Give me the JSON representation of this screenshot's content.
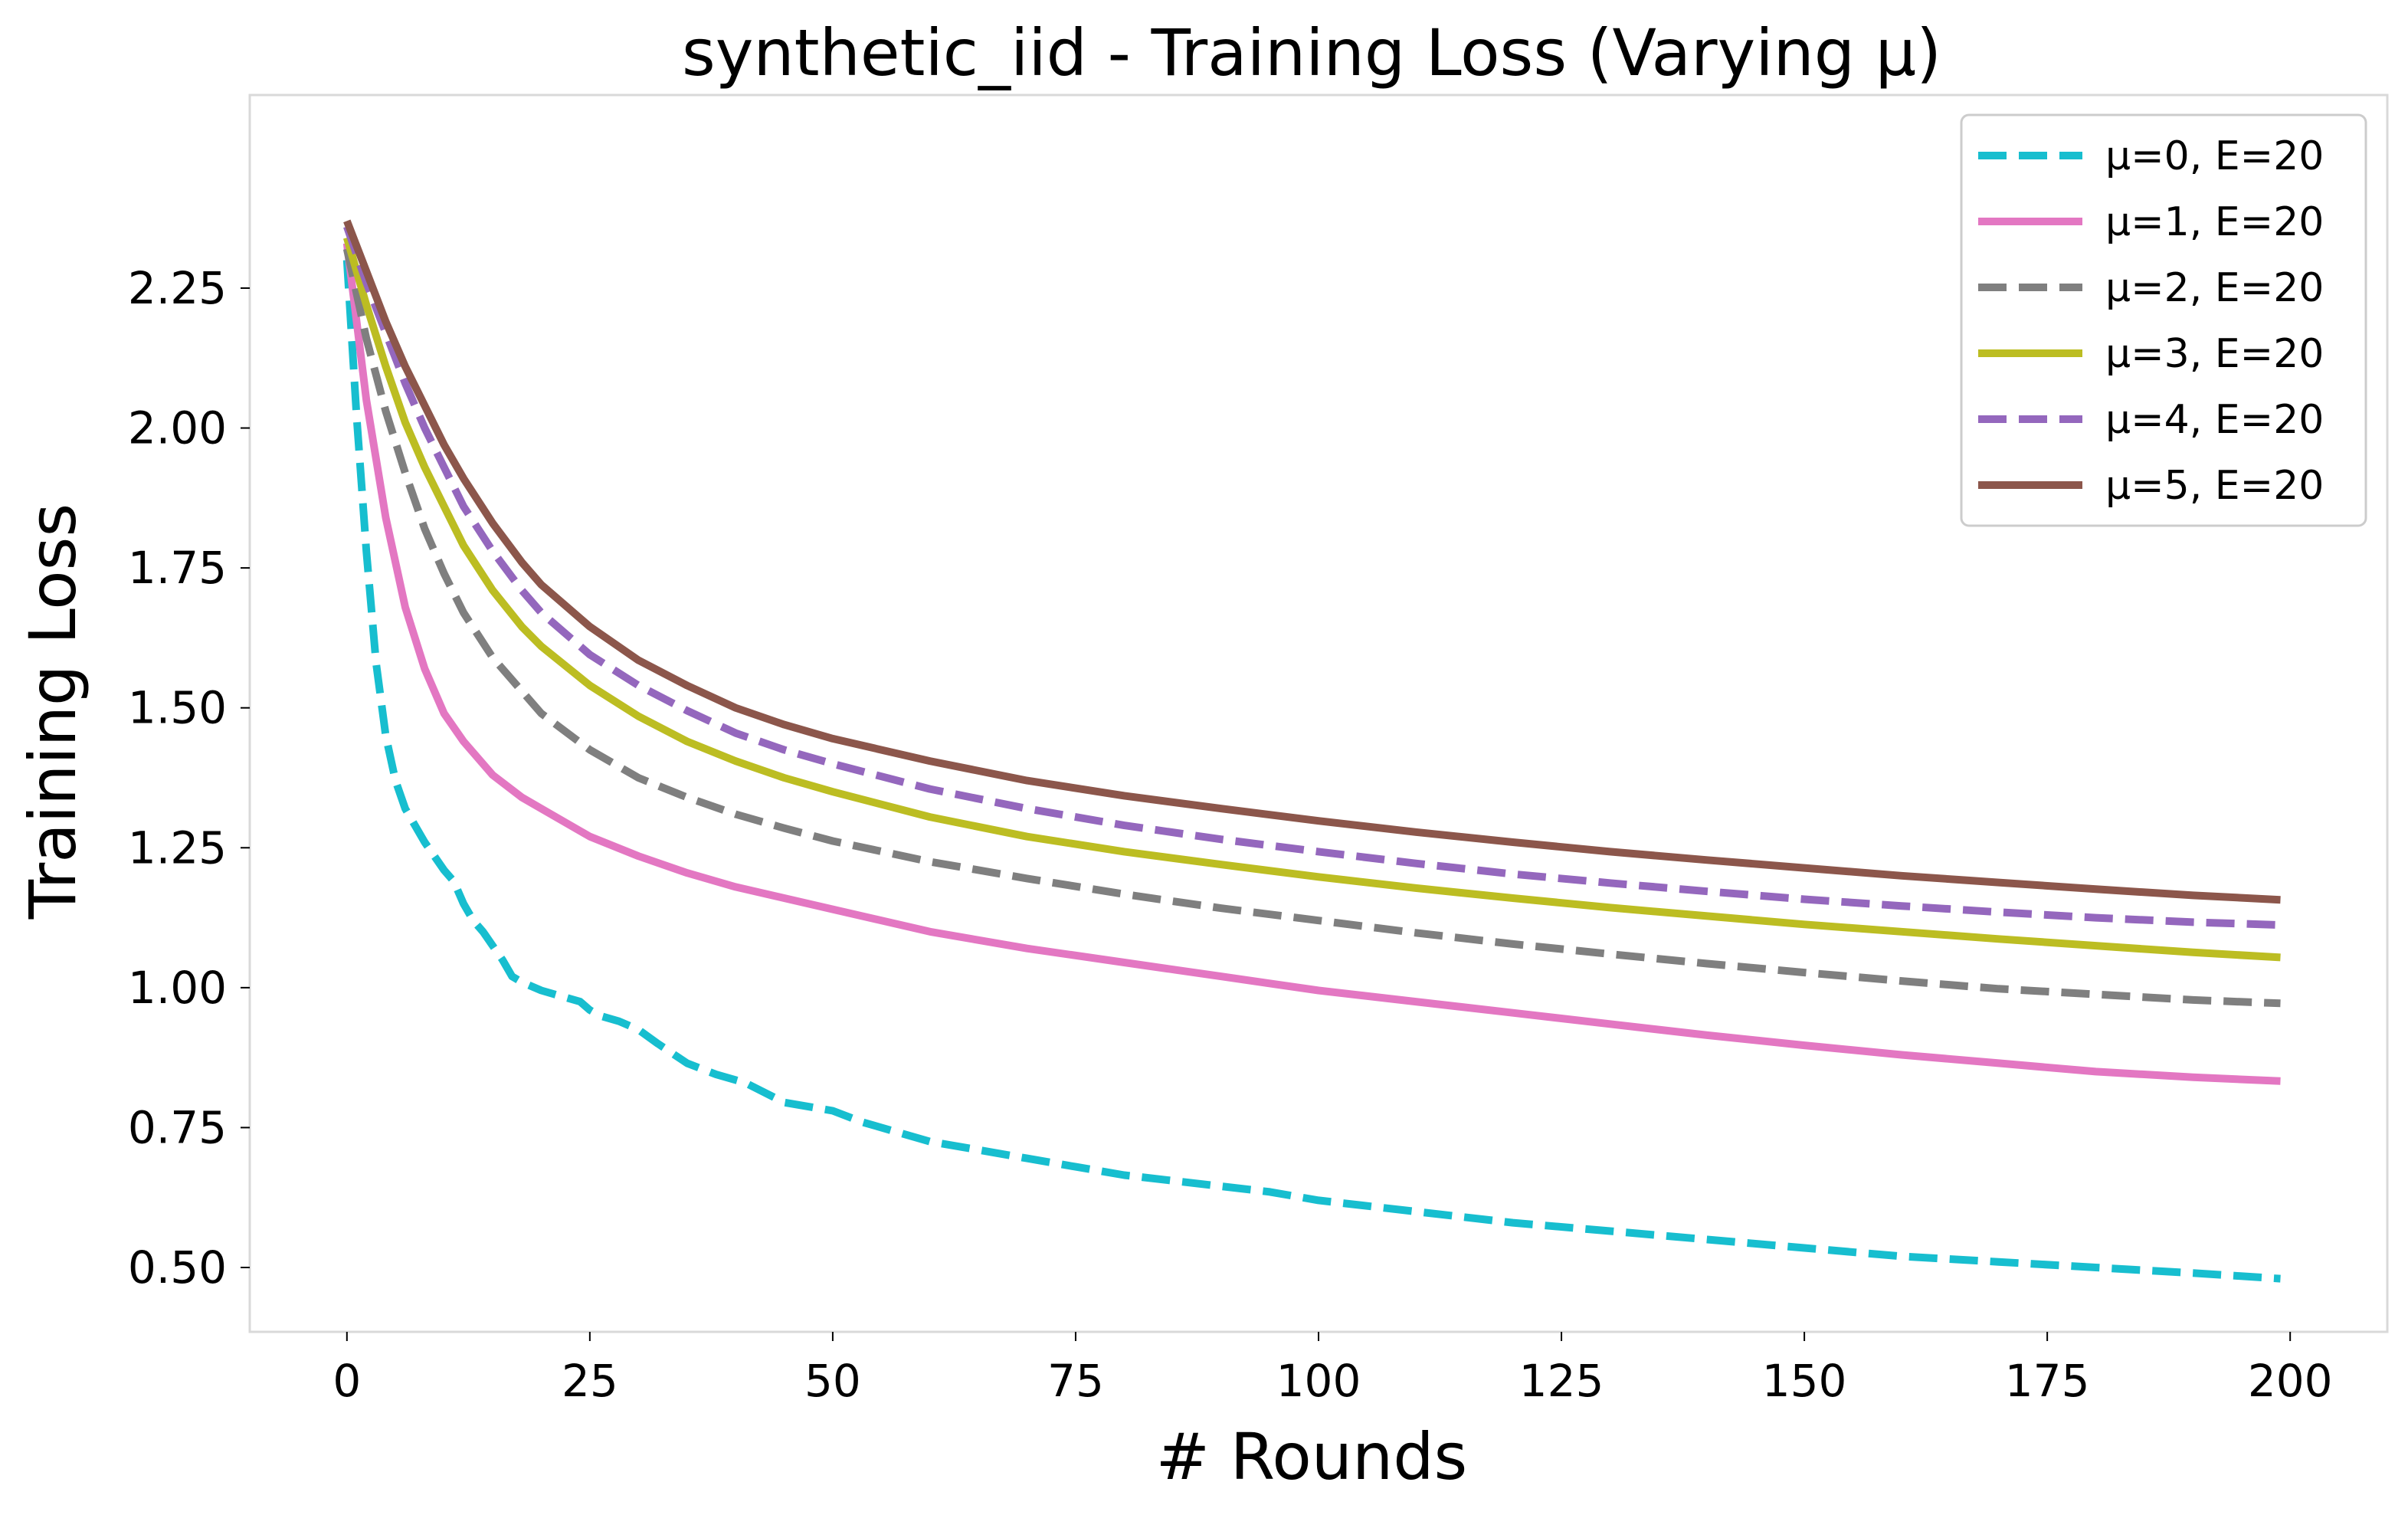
{
  "chart_data": {
    "type": "line",
    "title": "synthetic_iid - Training Loss (Varying μ)",
    "xlabel": "# Rounds",
    "ylabel": "Training Loss",
    "xlim": [
      -10,
      210
    ],
    "ylim": [
      0.385,
      2.595
    ],
    "x_ticks": [
      0,
      25,
      50,
      75,
      100,
      125,
      150,
      175,
      200
    ],
    "y_ticks": [
      0.5,
      0.75,
      1.0,
      1.25,
      1.5,
      1.75,
      2.0,
      2.25
    ],
    "x_tick_labels": [
      "0",
      "25",
      "50",
      "75",
      "100",
      "125",
      "150",
      "175",
      "200"
    ],
    "y_tick_labels": [
      "0.50",
      "0.75",
      "1.00",
      "1.25",
      "1.50",
      "1.75",
      "2.00",
      "2.25"
    ],
    "grid": false,
    "legend_position": "top-right",
    "series": [
      {
        "name": "μ=0, E=20",
        "color": "#17becf",
        "dashed": true,
        "x": [
          0,
          1,
          2,
          3,
          4,
          5,
          6,
          8,
          10,
          11,
          12,
          13,
          14,
          16,
          17,
          18,
          20,
          22,
          24,
          25,
          26,
          28,
          30,
          32,
          35,
          38,
          41,
          45,
          50,
          53,
          56,
          60,
          65,
          70,
          75,
          80,
          85,
          90,
          95,
          100,
          110,
          120,
          130,
          140,
          150,
          160,
          170,
          180,
          190,
          199
        ],
        "y": [
          2.3,
          2.02,
          1.78,
          1.58,
          1.45,
          1.37,
          1.32,
          1.26,
          1.21,
          1.19,
          1.15,
          1.12,
          1.1,
          1.05,
          1.02,
          1.01,
          0.995,
          0.985,
          0.975,
          0.96,
          0.95,
          0.94,
          0.925,
          0.9,
          0.865,
          0.845,
          0.83,
          0.795,
          0.78,
          0.76,
          0.745,
          0.725,
          0.71,
          0.695,
          0.68,
          0.665,
          0.655,
          0.645,
          0.635,
          0.62,
          0.6,
          0.58,
          0.565,
          0.55,
          0.535,
          0.52,
          0.51,
          0.5,
          0.49,
          0.48
        ]
      },
      {
        "name": "μ=1, E=20",
        "color": "#e377c2",
        "dashed": false,
        "x": [
          0,
          2,
          4,
          6,
          8,
          10,
          12,
          15,
          18,
          20,
          25,
          30,
          35,
          40,
          45,
          50,
          60,
          70,
          80,
          90,
          100,
          110,
          120,
          130,
          140,
          150,
          160,
          170,
          180,
          190,
          199
        ],
        "y": [
          2.33,
          2.05,
          1.84,
          1.68,
          1.57,
          1.49,
          1.44,
          1.38,
          1.34,
          1.32,
          1.27,
          1.235,
          1.205,
          1.18,
          1.16,
          1.14,
          1.1,
          1.07,
          1.045,
          1.02,
          0.995,
          0.975,
          0.955,
          0.935,
          0.915,
          0.897,
          0.88,
          0.865,
          0.85,
          0.84,
          0.833
        ]
      },
      {
        "name": "μ=2, E=20",
        "color": "#7f7f7f",
        "dashed": true,
        "x": [
          0,
          2,
          4,
          6,
          8,
          10,
          12,
          15,
          18,
          20,
          25,
          30,
          35,
          40,
          45,
          50,
          60,
          70,
          80,
          90,
          100,
          110,
          120,
          130,
          140,
          150,
          160,
          170,
          180,
          190,
          199
        ],
        "y": [
          2.32,
          2.16,
          2.03,
          1.92,
          1.82,
          1.74,
          1.67,
          1.59,
          1.53,
          1.49,
          1.425,
          1.375,
          1.34,
          1.31,
          1.285,
          1.262,
          1.225,
          1.195,
          1.167,
          1.142,
          1.12,
          1.098,
          1.078,
          1.06,
          1.043,
          1.027,
          1.012,
          0.998,
          0.988,
          0.978,
          0.972
        ]
      },
      {
        "name": "μ=3, E=20",
        "color": "#bcbd22",
        "dashed": false,
        "x": [
          0,
          2,
          4,
          6,
          8,
          10,
          12,
          15,
          18,
          20,
          25,
          30,
          35,
          40,
          45,
          50,
          60,
          70,
          80,
          90,
          100,
          110,
          120,
          130,
          140,
          150,
          160,
          170,
          180,
          190,
          199
        ],
        "y": [
          2.34,
          2.22,
          2.11,
          2.01,
          1.93,
          1.86,
          1.79,
          1.71,
          1.645,
          1.61,
          1.54,
          1.485,
          1.44,
          1.405,
          1.375,
          1.35,
          1.305,
          1.27,
          1.243,
          1.22,
          1.198,
          1.178,
          1.16,
          1.143,
          1.128,
          1.113,
          1.1,
          1.087,
          1.075,
          1.063,
          1.054
        ]
      },
      {
        "name": "μ=4, E=20",
        "color": "#9467bd",
        "dashed": true,
        "x": [
          0,
          2,
          4,
          6,
          8,
          10,
          12,
          15,
          18,
          20,
          25,
          30,
          35,
          40,
          45,
          50,
          60,
          70,
          80,
          90,
          100,
          110,
          120,
          130,
          140,
          150,
          160,
          170,
          180,
          190,
          199
        ],
        "y": [
          2.36,
          2.26,
          2.17,
          2.08,
          2.0,
          1.93,
          1.86,
          1.78,
          1.71,
          1.67,
          1.595,
          1.54,
          1.495,
          1.455,
          1.425,
          1.4,
          1.355,
          1.32,
          1.29,
          1.265,
          1.243,
          1.222,
          1.203,
          1.187,
          1.172,
          1.158,
          1.146,
          1.135,
          1.125,
          1.117,
          1.112
        ]
      },
      {
        "name": "μ=5, E=20",
        "color": "#8c564b",
        "dashed": false,
        "x": [
          0,
          2,
          4,
          6,
          8,
          10,
          12,
          15,
          18,
          20,
          25,
          30,
          35,
          40,
          45,
          50,
          60,
          70,
          80,
          90,
          100,
          110,
          120,
          130,
          140,
          150,
          160,
          170,
          180,
          190,
          199
        ],
        "y": [
          2.37,
          2.28,
          2.19,
          2.11,
          2.04,
          1.97,
          1.91,
          1.83,
          1.76,
          1.72,
          1.645,
          1.585,
          1.54,
          1.5,
          1.47,
          1.445,
          1.405,
          1.37,
          1.343,
          1.32,
          1.298,
          1.278,
          1.26,
          1.243,
          1.228,
          1.214,
          1.2,
          1.188,
          1.176,
          1.165,
          1.157
        ]
      }
    ]
  }
}
